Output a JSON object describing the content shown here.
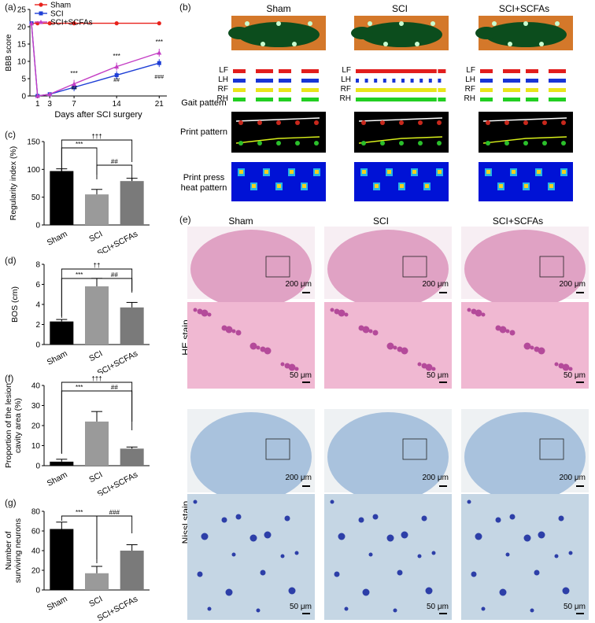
{
  "panels": {
    "a": "(a)",
    "b": "(b)",
    "c": "(c)",
    "d": "(d)",
    "e": "(e)",
    "f": "(f)",
    "g": "(g)"
  },
  "colors": {
    "sham": "#e8221c",
    "sci": "#1e3fd6",
    "scifcas": "#c43ec4",
    "bar_sham": "#000000",
    "bar_sci": "#9a9a9a",
    "bar_scfa": "#7a7a7a"
  },
  "panel_a": {
    "ylabel": "BBB score",
    "xlabel": "Days after SCI surgery",
    "legend": [
      "Sham",
      "SCI",
      "SCI+SCFAs"
    ],
    "sig_labels": {
      "d7": [
        "***",
        "##"
      ],
      "d14": [
        "***",
        "##"
      ],
      "d21": [
        "***",
        "###"
      ]
    }
  },
  "chart_data": [
    {
      "type": "line",
      "x": [
        0,
        1,
        3,
        7,
        14,
        21
      ],
      "xticks": [
        "1",
        "3",
        "7",
        "14",
        "21"
      ],
      "ylim": [
        0,
        25
      ],
      "yticks": [
        0,
        5,
        10,
        15,
        20,
        25
      ],
      "ylabel": "BBB score",
      "xlabel": "Days after SCI surgery",
      "series": [
        {
          "name": "Sham",
          "values": [
            21,
            21,
            21,
            21,
            21,
            21
          ]
        },
        {
          "name": "SCI",
          "values": [
            21,
            0,
            0.5,
            2.5,
            6,
            9.5
          ]
        },
        {
          "name": "SCI+SCFAs",
          "values": [
            21,
            0,
            0.5,
            3.5,
            8.5,
            12.5
          ]
        }
      ]
    },
    {
      "type": "bar",
      "categories": [
        "Sham",
        "SCI",
        "SCI+SCFAs"
      ],
      "values": [
        97,
        55,
        79
      ],
      "errors": [
        4,
        9,
        5
      ],
      "ylabel": "Regularity index (%)",
      "ylim": [
        0,
        150
      ],
      "yticks": [
        0,
        50,
        100,
        150
      ],
      "sig": [
        "***",
        "##",
        "†††"
      ]
    },
    {
      "type": "bar",
      "categories": [
        "Sham",
        "SCI",
        "SCI+SCFAs"
      ],
      "values": [
        2.3,
        5.8,
        3.7
      ],
      "errors": [
        0.2,
        0.8,
        0.5
      ],
      "ylabel": "BOS (cm)",
      "ylim": [
        0,
        8
      ],
      "yticks": [
        0,
        2,
        4,
        6,
        8
      ],
      "sig": [
        "***",
        "##",
        "††"
      ]
    },
    {
      "type": "bar",
      "categories": [
        "Sham",
        "SCI",
        "SCI+SCFAs"
      ],
      "values": [
        2,
        22,
        8.5
      ],
      "errors": [
        1.2,
        5,
        0.8
      ],
      "ylabel": "Proportion of the lesion cavity area (%)",
      "ylim": [
        0,
        40
      ],
      "yticks": [
        0,
        10,
        20,
        30,
        40
      ],
      "sig": [
        "***",
        "##",
        "†††"
      ]
    },
    {
      "type": "bar",
      "categories": [
        "Sham",
        "SCI",
        "SCI+SCFAs"
      ],
      "values": [
        62,
        17,
        40
      ],
      "errors": [
        7,
        7,
        6
      ],
      "ylabel": "Number of surviving neurons",
      "ylim": [
        0,
        80
      ],
      "yticks": [
        0,
        20,
        40,
        60,
        80
      ],
      "sig": [
        "***",
        "###"
      ]
    }
  ],
  "panel_b": {
    "columns": [
      "Sham",
      "SCI",
      "SCI+SCFAs"
    ],
    "rows": [
      "Gait pattern",
      "Print pattern",
      "Print press heat pattern"
    ],
    "paws": [
      "LF",
      "LH",
      "RF",
      "RH"
    ]
  },
  "panel_e": {
    "columns": [
      "Sham",
      "SCI",
      "SCI+SCFAs"
    ],
    "rows": [
      "HE stain",
      "Nissl stain"
    ],
    "scale_200": "200 μm",
    "scale_50": "50 μm"
  }
}
